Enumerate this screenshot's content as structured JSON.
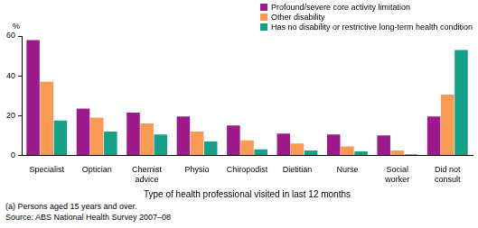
{
  "chart_data": {
    "type": "bar",
    "ylabel": "%",
    "xlabel": "Type of health professional visited in last 12 months",
    "annotations": [
      "(a) Persons aged 15 years and over.",
      "Source: ABS National Health Survey 2007–08"
    ],
    "categories": [
      "Specialist",
      "Optician",
      "Chemist advice",
      "Physio",
      "Chiropodist",
      "Dietitian",
      "Nurse",
      "Social worker",
      "Did not consult"
    ],
    "series": [
      {
        "name": "Profound/severe core activity limitation",
        "color": "#9c1a8a",
        "values": [
          58,
          23.5,
          21.5,
          19.5,
          15,
          11,
          10.5,
          10,
          19.5
        ]
      },
      {
        "name": "Other disability",
        "color": "#f89a52",
        "values": [
          37,
          19,
          16,
          12,
          7.5,
          6,
          4.5,
          2.5,
          30.5
        ]
      },
      {
        "name": "Has no disability or restrictive long-term health condition",
        "color": "#17a088",
        "values": [
          17.5,
          12,
          10.5,
          7,
          3,
          2.5,
          2,
          0.5,
          53
        ]
      }
    ],
    "ylim": [
      0,
      60
    ],
    "yticks": [
      0,
      20,
      40,
      60
    ],
    "grid": false,
    "legend": "top right"
  }
}
